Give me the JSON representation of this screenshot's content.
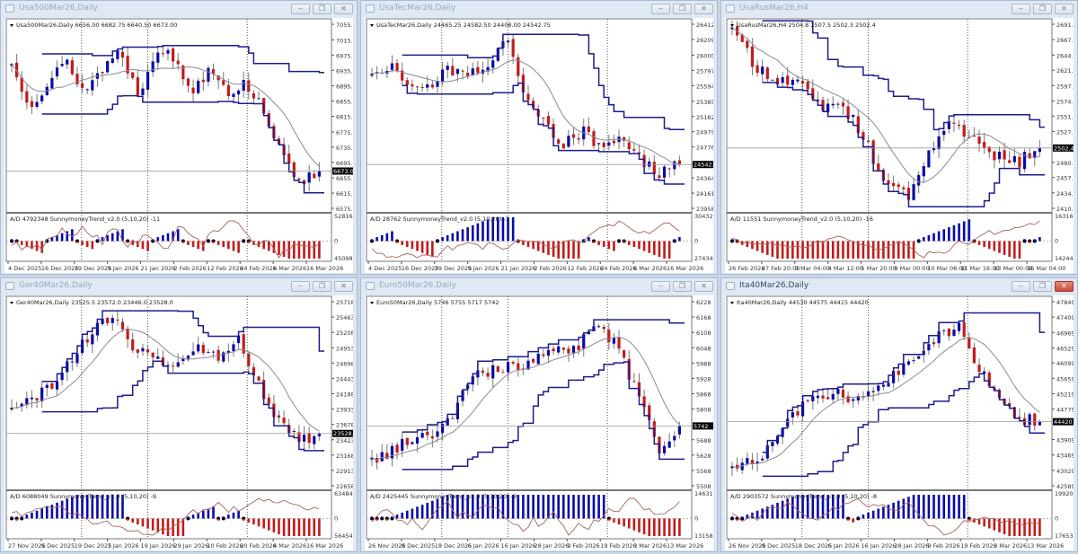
{
  "colors": {
    "bull": "#0a0aa8",
    "bear": "#c41a1a",
    "channel": "#1c1c8c",
    "ma": "#8a8a96",
    "ad_line": "#a8645c",
    "background": "#ffffff"
  },
  "window_buttons": {
    "minimize": "‒",
    "restore": "❐",
    "close": "✕"
  },
  "charts": [
    {
      "title": "Usa500Mar26,Daily",
      "ohlc": "Usa500Mar26,Daily  6656.00 6682.75 6640.50 6673.00",
      "price_ticks": [
        "7055.80",
        "7015.00",
        "6975.40",
        "6935.80",
        "6895.00",
        "6855.40",
        "6815.80",
        "6775.00",
        "6735.40",
        "6695.80",
        "6655.00",
        "6615.40",
        "6575.80"
      ],
      "price_range": [
        6575.8,
        7055.8
      ],
      "current_price": "6673.00",
      "current_value": 6673.0,
      "indicator_label": "A/D 4792348  SunnymoneyTrend_v2.0  (5,10,20)  -11",
      "indicator_ticks": [
        "5281684",
        "0",
        "4509839"
      ],
      "dates": [
        "4 Dec 2025",
        "16 Dec 2025",
        "29 Dec 2025",
        "9 Jan 2026",
        "21 Jan 2026",
        "2 Feb 2026",
        "12 Feb 2026",
        "24 Feb 2026",
        "6 Mar 2026",
        "16 Mar 2026"
      ],
      "price_path": [
        6950,
        6850,
        6900,
        6960,
        6880,
        6940,
        6990,
        6870,
        7000,
        6960,
        6880,
        6950,
        6880,
        6900,
        6830,
        6700,
        6650,
        6673
      ]
    },
    {
      "title": "UsaTecMar26,Daily",
      "ohlc": "UsaTecMar26,Daily  24465.25 24582.50 24408.00 24542.75",
      "price_ticks": [
        "26412.50",
        "26209.55",
        "26000.45",
        "25797.50",
        "25594.55",
        "25385.45",
        "25182.50",
        "24979.55",
        "24776.60",
        "24364.55",
        "24161.60",
        "23958.65"
      ],
      "price_range": [
        23958.65,
        26412.5
      ],
      "current_price": "24542.75",
      "current_value": 24542.75,
      "indicator_label": "A/D 28762  SunnymoneyTrend_v2.0  (5,10,20)  -1",
      "indicator_ticks": [
        "30432137",
        "0",
        "27434339"
      ],
      "dates": [
        "4 Dec 2025",
        "16 Dec 2025",
        "29 Dec 2025",
        "9 Jan 2026",
        "21 Jan 2026",
        "2 Feb 2026",
        "12 Feb 2026",
        "24 Feb 2026",
        "6 Mar 2026",
        "16 Mar 2026"
      ],
      "price_path": [
        25700,
        25900,
        25500,
        25600,
        25800,
        25700,
        25900,
        26200,
        25400,
        25100,
        24800,
        25000,
        24700,
        24900,
        24600,
        24400,
        24542
      ]
    },
    {
      "title": "UsaRusMar26,H4",
      "ohlc": "UsaRusMar26,H4  2504.8 2507.5 2502.3 2502.4",
      "price_ticks": [
        "2691.0",
        "2667.5",
        "2644.0",
        "2621.0",
        "2597.5",
        "2574.0",
        "2551.0",
        "2527.5",
        "2480.5",
        "2457.5",
        "2434.0",
        "2410.5"
      ],
      "price_range": [
        2410.5,
        2691.0
      ],
      "current_price": "2502.4",
      "current_value": 2502.4,
      "indicator_label": "A/D 11551  SunnymoneyTrend_v2.0  (5,10,20)  -16",
      "indicator_ticks": [
        "1631697",
        "0",
        "1424421"
      ],
      "dates": [
        "26 Feb 2026",
        "27 Feb 20:00",
        "3 Mar 04:00",
        "4 Mar 12:00",
        "5 Mar 20:00",
        "9 Mar 00:00",
        "10 Mar 08:00",
        "11 Mar 16:00",
        "13 Mar 00:00",
        "16 Mar 04:00"
      ],
      "price_path": [
        2680,
        2630,
        2600,
        2610,
        2560,
        2570,
        2520,
        2440,
        2430,
        2500,
        2540,
        2520,
        2490,
        2480,
        2502
      ]
    },
    {
      "title": "Ger40Mar26,Daily",
      "ohlc": "Ger40Mar26,Daily  23525.5 23572.0 23446.0 23528.0",
      "price_ticks": [
        "25718.5",
        "25463.5",
        "25208.5",
        "24953.5",
        "24698.5",
        "24443.5",
        "24188.5",
        "23933.5",
        "23678.5",
        "23423.5",
        "23168.5",
        "22913.5",
        "22658.5"
      ],
      "price_range": [
        22658.5,
        25718.5
      ],
      "current_price": "23528.0",
      "current_value": 23528.0,
      "indicator_label": "A/D 6088049  SunnymoneyTrend_v2.0  (5,10,20)  -9",
      "indicator_ticks": [
        "6348449",
        "0",
        "5645494"
      ],
      "dates": [
        "27 Nov 2025",
        "9 Dec 2025",
        "19 Dec 2025",
        "7 Jan 2026",
        "19 Jan 2026",
        "29 Jan 2026",
        "10 Feb 2026",
        "20 Feb 2026",
        "4 Mar 2026",
        "16 Mar 2026"
      ],
      "price_path": [
        23900,
        24100,
        24350,
        24800,
        25250,
        25550,
        24900,
        24800,
        24700,
        25000,
        24800,
        25100,
        24400,
        23700,
        23400,
        23528
      ]
    },
    {
      "title": "Euro50Mar26,Daily",
      "ohlc": "Euro50Mar26,Daily  5746 5755 5717 5742",
      "price_ticks": [
        "6228",
        "6168",
        "6108",
        "6048",
        "5988",
        "5928",
        "5868",
        "5808",
        "5688",
        "5628",
        "5568",
        "5508"
      ],
      "price_range": [
        5508,
        6228
      ],
      "current_price": "5742",
      "current_value": 5742,
      "indicator_label": "A/D 2425445  SunnymoneyTrend_v2.0  (5,10,20)  -9",
      "indicator_ticks": [
        "1463109",
        "0",
        "1315895"
      ],
      "dates": [
        "26 Nov 2025",
        "8 Dec 2025",
        "18 Dec 2025",
        "6 Jan 2026",
        "16 Jan 2026",
        "28 Jan 2026",
        "9 Feb 2026",
        "19 Feb 2026",
        "3 Mar 2026",
        "13 Mar 2026"
      ],
      "price_path": [
        5600,
        5640,
        5700,
        5710,
        5800,
        5960,
        5960,
        5980,
        6000,
        6050,
        6050,
        6150,
        6050,
        5850,
        5650,
        5742
      ]
    },
    {
      "title": "Ita40Mar26,Daily",
      "ohlc": "Ita40Mar26,Daily  44530 44575 44415 44420",
      "price_ticks": [
        "47849",
        "47409",
        "46969",
        "46529",
        "46099",
        "45659",
        "45219",
        "44779",
        "43909",
        "43469",
        "43029",
        "42589"
      ],
      "price_range": [
        42589,
        47849
      ],
      "current_price": "44420",
      "current_value": 44420,
      "indicator_label": "A/D 2903572  SunnymoneyTrend_v2.0  (5,10,20)  -8",
      "indicator_ticks": [
        "1992018",
        "0",
        "1765356"
      ],
      "dates": [
        "26 Nov 2025",
        "8 Dec 2025",
        "18 Dec 2025",
        "6 Jan 2026",
        "16 Jan 2026",
        "28 Jan 2026",
        "9 Feb 2026",
        "19 Feb 2026",
        "3 Mar 2026",
        "13 Mar 2026"
      ],
      "price_path": [
        43000,
        43300,
        43800,
        44700,
        45100,
        45300,
        45000,
        45200,
        45800,
        46400,
        46800,
        47200,
        46000,
        45000,
        44500,
        44420
      ]
    }
  ]
}
